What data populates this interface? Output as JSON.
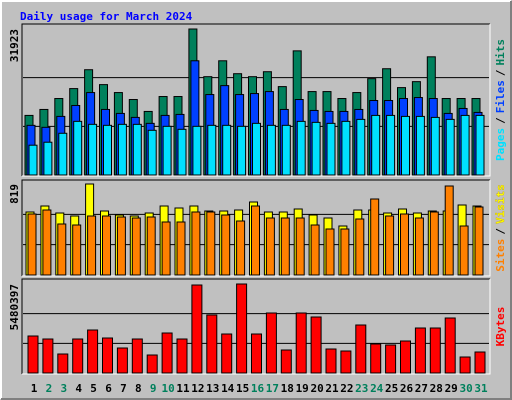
{
  "chart_data": [
    {
      "type": "bar",
      "title": "Daily usage for March 2024",
      "legend_separator": "/",
      "ylim": [
        0,
        31923
      ],
      "yticks": [
        31923
      ],
      "series": [
        {
          "name": "Hits",
          "color": "#00805c",
          "values": [
            13030,
            14333,
            16721,
            18893,
            23019,
            19762,
            18024,
            16504,
            13898,
            17156,
            17156,
            31923,
            21499,
            24974,
            22150,
            21499,
            22585,
            19327,
            27145,
            18241,
            18241,
            16721,
            18024,
            21065,
            23236,
            19110,
            20413,
            25842,
            16721,
            16721,
            16721
          ]
        },
        {
          "name": "Files",
          "color": "#0040ff",
          "values": [
            10858,
            10424,
            12812,
            15201,
            18024,
            14333,
            13464,
            12595,
            11292,
            13030,
            13247,
            24974,
            17590,
            19544,
            17590,
            17807,
            18241,
            14333,
            16504,
            14115,
            13898,
            13898,
            14333,
            16287,
            16287,
            16721,
            16938,
            16721,
            13464,
            14550,
            13681
          ]
        },
        {
          "name": "Pages",
          "color": "#00e0ff",
          "values": [
            6515,
            7166,
            9121,
            11727,
            11075,
            10858,
            11075,
            11075,
            9772,
            10641,
            9989,
            10641,
            10858,
            10858,
            10641,
            11292,
            10858,
            10858,
            11727,
            11509,
            11292,
            11727,
            12161,
            13030,
            13030,
            12812,
            12812,
            12595,
            12161,
            13030,
            13030
          ]
        }
      ]
    },
    {
      "type": "bar",
      "legend_separator": "/",
      "ylim": [
        0,
        819
      ],
      "yticks": [
        819
      ],
      "series": [
        {
          "name": "Visits",
          "color": "#ffff00",
          "values": [
            567,
            621,
            558,
            531,
            819,
            576,
            540,
            531,
            558,
            621,
            603,
            621,
            576,
            576,
            585,
            657,
            567,
            567,
            594,
            540,
            513,
            441,
            585,
            585,
            558,
            594,
            558,
            576,
            576,
            630,
            621
          ]
        },
        {
          "name": "Sites",
          "color": "#ff8000",
          "values": [
            549,
            585,
            459,
            450,
            531,
            531,
            522,
            513,
            522,
            477,
            477,
            567,
            567,
            540,
            486,
            621,
            513,
            513,
            513,
            450,
            414,
            414,
            504,
            684,
            531,
            549,
            513,
            567,
            801,
            441,
            612
          ]
        }
      ]
    },
    {
      "type": "bar",
      "ylim": [
        0,
        5480397
      ],
      "yticks": [
        5480397
      ],
      "categories": [
        "1",
        "2",
        "3",
        "4",
        "5",
        "6",
        "7",
        "8",
        "9",
        "10",
        "11",
        "12",
        "13",
        "14",
        "15",
        "16",
        "17",
        "18",
        "19",
        "20",
        "21",
        "22",
        "23",
        "24",
        "25",
        "26",
        "27",
        "28",
        "29",
        "30",
        "31"
      ],
      "category_colors": [
        "#000000",
        "#00805c",
        "#00805c",
        "#000000",
        "#000000",
        "#000000",
        "#000000",
        "#000000",
        "#00805c",
        "#00805c",
        "#000000",
        "#000000",
        "#000000",
        "#000000",
        "#000000",
        "#00805c",
        "#00805c",
        "#000000",
        "#000000",
        "#000000",
        "#000000",
        "#000000",
        "#00805c",
        "#00805c",
        "#000000",
        "#000000",
        "#000000",
        "#000000",
        "#000000",
        "#00805c",
        "#00805c"
      ],
      "series": [
        {
          "name": "KBytes",
          "color": "#ff0000",
          "values": [
            2278349,
            2093618,
            1169963,
            2093618,
            2647811,
            2155195,
            1539425,
            2093618,
            1108386,
            2463080,
            2093618,
            5418776,
            3571466,
            2401503,
            5480397,
            2401503,
            3694620,
            1416271,
            3694620,
            3448312,
            1477848,
            1354694,
            2955696,
            1785733,
            1724156,
            1970464,
            2770965,
            2770965,
            3386735,
            985232,
            1293117
          ]
        }
      ]
    }
  ]
}
